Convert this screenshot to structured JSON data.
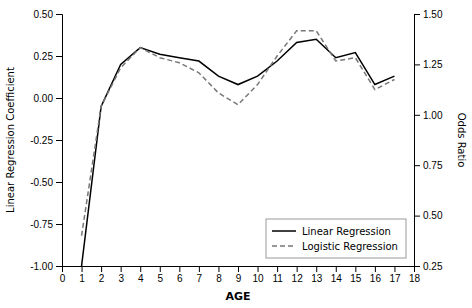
{
  "chart_data": {
    "type": "line",
    "x": [
      1,
      2,
      3,
      4,
      5,
      6,
      7,
      8,
      9,
      10,
      11,
      12,
      13,
      14,
      15,
      16,
      17
    ],
    "series": [
      {
        "name": "Linear Regression",
        "color": "#000000",
        "line_style": "solid",
        "values": [
          -1.0,
          -0.05,
          0.2,
          0.3,
          0.26,
          0.24,
          0.22,
          0.13,
          0.08,
          0.13,
          0.22,
          0.33,
          0.35,
          0.24,
          0.27,
          0.08,
          0.13
        ]
      },
      {
        "name": "Logistic Regression",
        "color": "#777777",
        "line_style": "dashed",
        "values": [
          -0.82,
          -0.05,
          0.18,
          0.3,
          0.24,
          0.21,
          0.15,
          0.03,
          -0.04,
          0.08,
          0.25,
          0.4,
          0.4,
          0.22,
          0.24,
          0.05,
          0.11
        ]
      }
    ],
    "xlabel": "AGE",
    "ylabel": "Linear Regression Coefficient",
    "y2label": "Odds Ratio",
    "xlim": [
      0,
      18
    ],
    "xticks": [
      0,
      1,
      2,
      3,
      4,
      5,
      6,
      7,
      8,
      9,
      10,
      11,
      12,
      13,
      14,
      15,
      16,
      17,
      18
    ],
    "ylim": [
      -1.0,
      0.5
    ],
    "yticks": [
      {
        "value": -1,
        "label": "-1.00"
      },
      -0.75,
      {
        "value": -0.5,
        "label": "-0.50"
      },
      -0.25,
      {
        "value": 0,
        "label": "0.00"
      },
      0.25,
      {
        "value": 0.5,
        "label": "0.50"
      }
    ],
    "y2lim": [
      0.25,
      1.5
    ],
    "y2ticks": [
      0.25,
      {
        "value": 0.5,
        "label": "0.50"
      },
      0.75,
      {
        "value": 1,
        "label": "1.00"
      },
      1.25,
      {
        "value": 1.5,
        "label": "1.50"
      }
    ],
    "legend": "lower right"
  }
}
